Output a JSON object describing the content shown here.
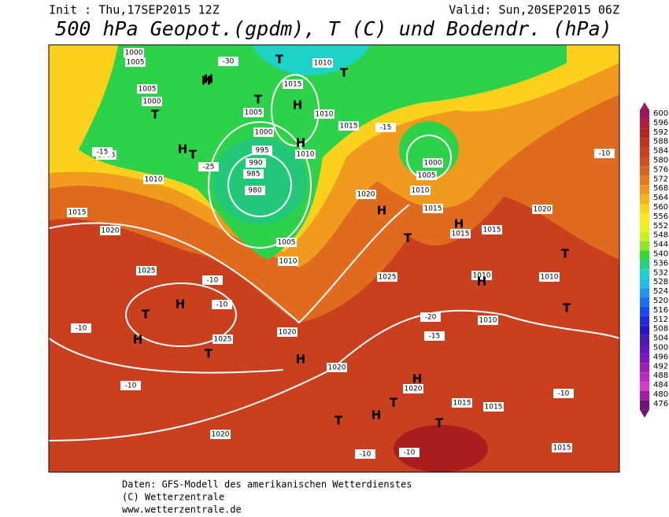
{
  "header": {
    "init": "Init : Thu,17SEP2015 12Z",
    "valid": "Valid: Sun,20SEP2015 06Z",
    "title": "500 hPa Geopot.(gpdm), T (C) und Bodendr. (hPa)"
  },
  "colorbar": {
    "ticks": [
      600,
      596,
      592,
      588,
      584,
      580,
      576,
      572,
      568,
      564,
      560,
      556,
      552,
      548,
      544,
      540,
      536,
      532,
      528,
      524,
      520,
      516,
      512,
      508,
      504,
      500,
      496,
      492,
      488,
      484,
      480,
      476
    ]
  },
  "map": {
    "labels": [
      "1000",
      "1005",
      "1005",
      "1000",
      "H",
      "T",
      "-30",
      "T",
      "1010",
      "1015",
      "H",
      "T",
      "1005",
      "1010",
      "H",
      "1000",
      "995",
      "990",
      "985",
      "980",
      "1010",
      "1015",
      "1005",
      "1010",
      "-15",
      "T",
      "1015",
      "1005",
      "1010",
      "H",
      "T",
      "H",
      "1020",
      "1005",
      "1000",
      "1010",
      "1015",
      "1020",
      "1015",
      "H",
      "H",
      "T",
      "1020",
      "1015",
      "T",
      "1025",
      "1025",
      "H",
      "T",
      "H",
      "1025",
      "T",
      "1020",
      "-10",
      "-10",
      "H",
      "1010",
      "1010",
      "H",
      "T",
      "1020",
      "1020",
      "H",
      "1015",
      "1015",
      "T",
      "H",
      "T",
      "T",
      "1020",
      "1015",
      "-10",
      "-10",
      "-15",
      "-20",
      "-25",
      "-15",
      "-10",
      "1010",
      "-10",
      "-10",
      "-10"
    ]
  },
  "footer": {
    "lines": [
      "Daten: GFS-Modell des amerikanischen Wetterdienstes",
      "(C) Wetterzentrale",
      "www.wetterzentrale.de"
    ]
  }
}
